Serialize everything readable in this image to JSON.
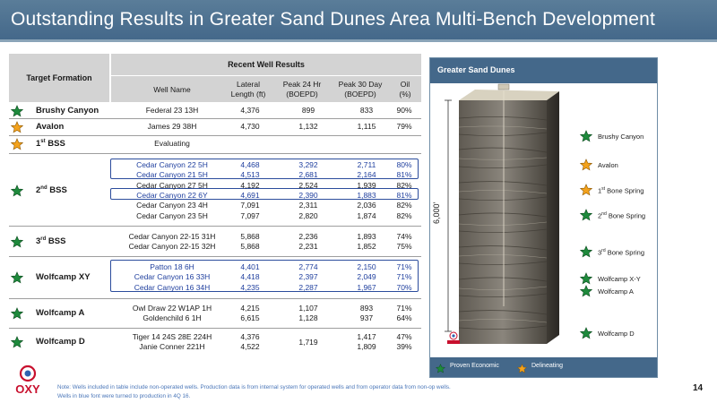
{
  "title": "Outstanding Results in Greater Sand Dunes Area Multi-Bench Development",
  "table": {
    "target_header": "Target Formation",
    "group_header": "Recent Well Results",
    "columns": [
      "Well Name",
      "Lateral Length (ft)",
      "Peak 24 Hr (BOEPD)",
      "Peak 30 Day (BOEPD)",
      "Oil (%)"
    ],
    "col_labels": {
      "well": "Well Name",
      "len1": "Lateral",
      "len2": "Length (ft)",
      "p24a": "Peak 24 Hr",
      "p24b": "(BOEPD)",
      "p30a": "Peak 30 Day",
      "p30b": "(BOEPD)",
      "oila": "Oil",
      "oilb": "(%)"
    },
    "groups": [
      {
        "formation": "Brushy Canyon",
        "sup": "",
        "star": "green",
        "wells": [
          {
            "name": "Federal 23 13H",
            "len": "4,376",
            "p24": "899",
            "p30": "833",
            "oil": "90%",
            "blue": false
          }
        ]
      },
      {
        "formation": "Avalon",
        "sup": "",
        "star": "orange",
        "wells": [
          {
            "name": "James 29 38H",
            "len": "4,730",
            "p24": "1,132",
            "p30": "1,115",
            "oil": "79%",
            "blue": false
          }
        ]
      },
      {
        "formation": "1",
        "sup": "st",
        "suffix": " BSS",
        "star": "orange",
        "wells": [
          {
            "name": "Evaluating",
            "len": "",
            "p24": "",
            "p30": "",
            "oil": "",
            "blue": false
          }
        ]
      },
      {
        "formation": "2",
        "sup": "nd",
        "suffix": " BSS",
        "star": "green",
        "wells": [
          {
            "name": "Cedar Canyon 22 5H",
            "len": "4,468",
            "p24": "3,292",
            "p30": "2,711",
            "oil": "80%",
            "blue": true
          },
          {
            "name": "Cedar Canyon 21 5H",
            "len": "4,513",
            "p24": "2,681",
            "p30": "2,164",
            "oil": "81%",
            "blue": true
          },
          {
            "name": "Cedar Canyon 27 5H",
            "len": "4,192",
            "p24": "2,524",
            "p30": "1,939",
            "oil": "82%",
            "blue": false
          },
          {
            "name": "Cedar Canyon 22 6Y",
            "len": "4,691",
            "p24": "2,390",
            "p30": "1,883",
            "oil": "81%",
            "blue": true
          },
          {
            "name": "Cedar Canyon 23 4H",
            "len": "7,091",
            "p24": "2,311",
            "p30": "2,036",
            "oil": "82%",
            "blue": false
          },
          {
            "name": "Cedar Canyon 23 5H",
            "len": "7,097",
            "p24": "2,820",
            "p30": "1,874",
            "oil": "82%",
            "blue": false
          }
        ]
      },
      {
        "formation": "3",
        "sup": "rd",
        "suffix": " BSS",
        "star": "green",
        "wells": [
          {
            "name": "Cedar Canyon 22-15 31H",
            "len": "5,868",
            "p24": "2,236",
            "p30": "1,893",
            "oil": "74%",
            "blue": false
          },
          {
            "name": "Cedar Canyon 22-15 32H",
            "len": "5,868",
            "p24": "2,231",
            "p30": "1,852",
            "oil": "75%",
            "blue": false
          }
        ]
      },
      {
        "formation": "Wolfcamp XY",
        "sup": "",
        "star": "green",
        "wells": [
          {
            "name": "Patton 18 6H",
            "len": "4,401",
            "p24": "2,774",
            "p30": "2,150",
            "oil": "71%",
            "blue": true
          },
          {
            "name": "Cedar Canyon 16 33H",
            "len": "4,418",
            "p24": "2,397",
            "p30": "2,049",
            "oil": "71%",
            "blue": true
          },
          {
            "name": "Cedar Canyon 16 34H",
            "len": "4,235",
            "p24": "2,287",
            "p30": "1,967",
            "oil": "70%",
            "blue": true
          }
        ]
      },
      {
        "formation": "Wolfcamp A",
        "sup": "",
        "star": "green",
        "wells": [
          {
            "name": "Owl Draw 22 W1AP 1H",
            "len": "4,215",
            "p24": "1,107",
            "p30": "893",
            "oil": "71%",
            "blue": false
          },
          {
            "name": "Goldenchild 6 1H",
            "len": "6,615",
            "p24": "1,128",
            "p30": "937",
            "oil": "64%",
            "blue": false
          }
        ]
      },
      {
        "formation": "Wolfcamp D",
        "sup": "",
        "star": "green",
        "wells": [
          {
            "name": "Tiger 14 24S 28E 224H",
            "len": "4,376",
            "p24": "",
            "p30": "1,417",
            "oil": "47%",
            "blue": false
          },
          {
            "name": "Janie Conner 221H",
            "len": "4,522",
            "p24": "",
            "p30": "1,809",
            "oil": "39%",
            "blue": false
          }
        ],
        "merged_p24": "1,719"
      }
    ]
  },
  "footnotes": {
    "line1": "Note: Wells included in table include non-operated wells.  Production data is from internal system for operated wells and from operator data from non-op wells.",
    "line2": "Wells in blue font were turned to production in 4Q 16."
  },
  "panel": {
    "title": "Greater Sand Dunes",
    "depth_label": "6,000'",
    "layers": [
      {
        "name": "Brushy Canyon",
        "star": "green"
      },
      {
        "name": "Avalon",
        "star": "orange"
      },
      {
        "name": "1",
        "sup": "st",
        "suffix": " Bone Spring",
        "star": "orange"
      },
      {
        "name": "2",
        "sup": "nd",
        "suffix": " Bone Spring",
        "star": "green"
      },
      {
        "name": "3",
        "sup": "rd",
        "suffix": " Bone Spring",
        "star": "green"
      },
      {
        "name": "Wolfcamp X-Y",
        "star": "green"
      },
      {
        "name": "Wolfcamp A",
        "star": "green"
      },
      {
        "name": "Wolfcamp D",
        "star": "green"
      }
    ],
    "legend": {
      "proven": "Proven Economic",
      "delineating": "Delineating"
    }
  },
  "logo_text": "OXY",
  "page_number": "14",
  "colors": {
    "title_bar": "#44688a",
    "star_green": "#1e8a3c",
    "star_orange": "#f3a21c",
    "highlight_blue": "#1f3f9e"
  }
}
